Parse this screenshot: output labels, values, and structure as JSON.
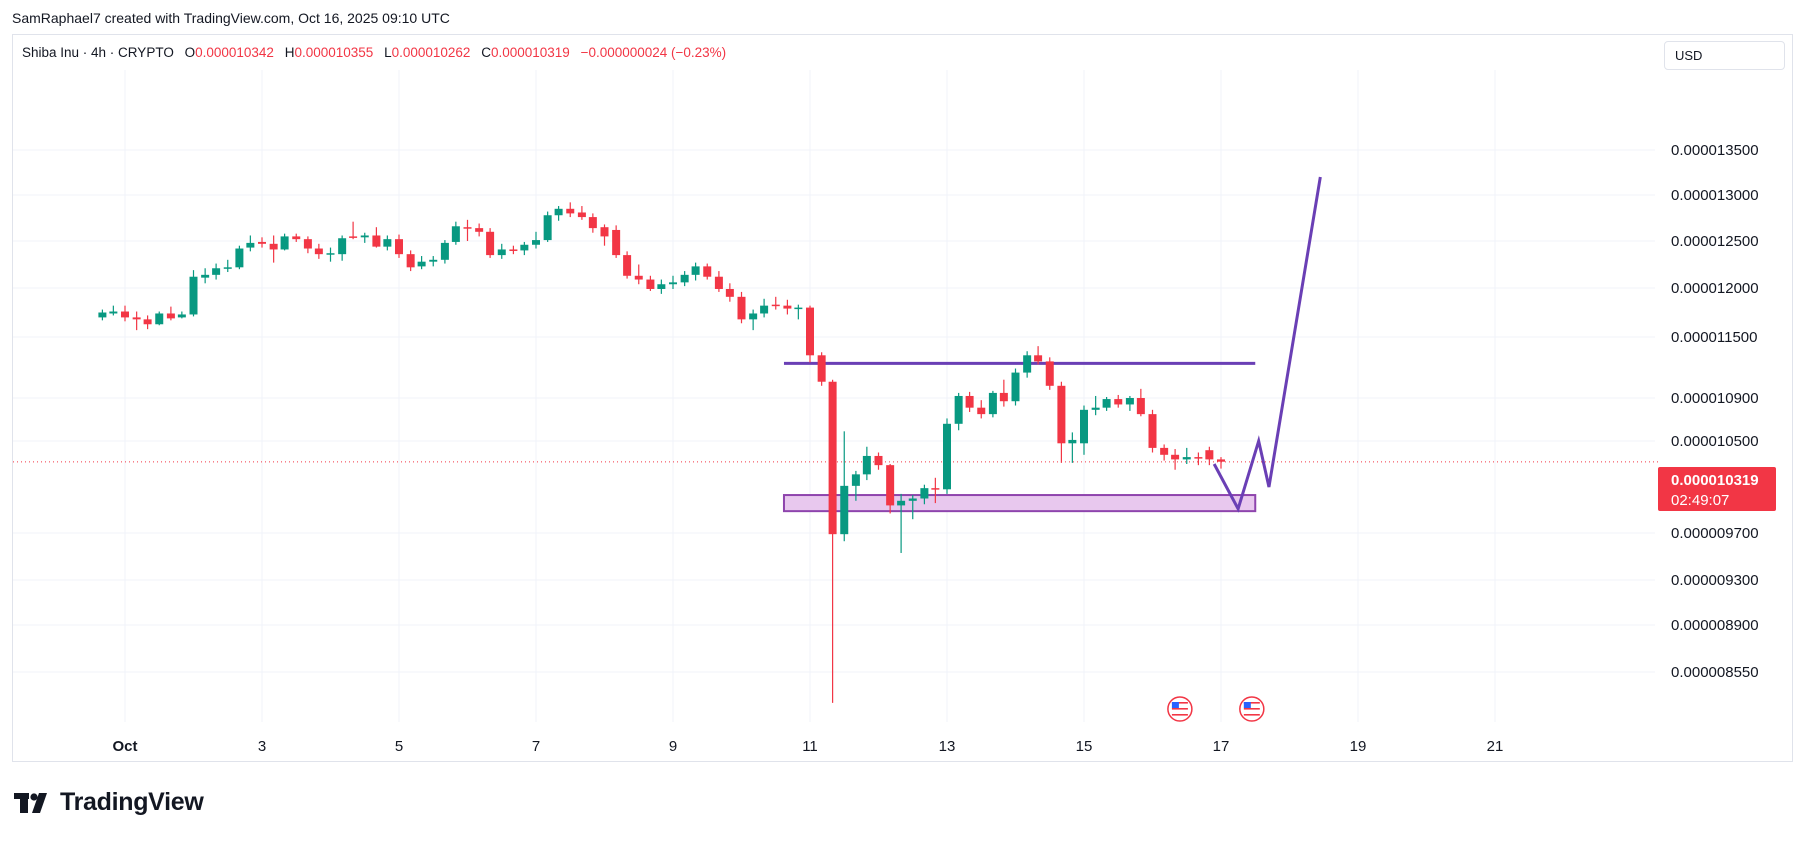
{
  "header": {
    "caption": "SamRaphael7 created with TradingView.com, Oct 16, 2025 09:10 UTC"
  },
  "legend": {
    "symbol": "Shiba Inu · 4h · CRYPTO",
    "open_label": "O",
    "open": "0.000010342",
    "high_label": "H",
    "high": "0.000010355",
    "low_label": "L",
    "low": "0.000010262",
    "close_label": "C",
    "close": "0.000010319",
    "change": "−0.000000024 (−0.23%)"
  },
  "currency": "USD",
  "price_badge": {
    "price": "0.000010319",
    "countdown": "02:49:07"
  },
  "brand": {
    "name": "TradingView"
  },
  "colors": {
    "up": "#089981",
    "down": "#f23645",
    "drawing": "#6a3fb5",
    "zone_fill": "#e8c8ee",
    "zone_border": "#8e44ad"
  },
  "chart_data": {
    "type": "candlestick",
    "symbol": "Shiba Inu",
    "interval": "4h",
    "x_axis": {
      "ticks": [
        {
          "label": "Oct",
          "day": 1
        },
        {
          "label": "3",
          "day": 3
        },
        {
          "label": "5",
          "day": 5
        },
        {
          "label": "7",
          "day": 7
        },
        {
          "label": "9",
          "day": 9
        },
        {
          "label": "11",
          "day": 11
        },
        {
          "label": "13",
          "day": 13
        },
        {
          "label": "15",
          "day": 15
        },
        {
          "label": "17",
          "day": 17
        },
        {
          "label": "19",
          "day": 19
        },
        {
          "label": "21",
          "day": 21
        }
      ]
    },
    "y_axis": {
      "ticks": [
        "0.000013500",
        "0.000013000",
        "0.000012500",
        "0.000012000",
        "0.000011500",
        "0.000010900",
        "0.000010500",
        "0.000009700",
        "0.000009300",
        "0.000008900",
        "0.000008550"
      ]
    },
    "grid": true,
    "current_price": 1.0319e-05,
    "candles": [
      {
        "day": 0.67,
        "o": 1.17e-05,
        "h": 1.178e-05,
        "l": 1.167e-05,
        "c": 1.175e-05
      },
      {
        "day": 0.83,
        "o": 1.174e-05,
        "h": 1.182e-05,
        "l": 1.172e-05,
        "c": 1.176e-05
      },
      {
        "day": 1.0,
        "o": 1.176e-05,
        "h": 1.182e-05,
        "l": 1.166e-05,
        "c": 1.17e-05
      },
      {
        "day": 1.17,
        "o": 1.17e-05,
        "h": 1.176e-05,
        "l": 1.157e-05,
        "c": 1.168e-05
      },
      {
        "day": 1.33,
        "o": 1.168e-05,
        "h": 1.172e-05,
        "l": 1.158e-05,
        "c": 1.163e-05
      },
      {
        "day": 1.5,
        "o": 1.163e-05,
        "h": 1.176e-05,
        "l": 1.162e-05,
        "c": 1.174e-05
      },
      {
        "day": 1.67,
        "o": 1.174e-05,
        "h": 1.181e-05,
        "l": 1.167e-05,
        "c": 1.169e-05
      },
      {
        "day": 1.83,
        "o": 1.17e-05,
        "h": 1.176e-05,
        "l": 1.169e-05,
        "c": 1.173e-05
      },
      {
        "day": 2.0,
        "o": 1.173e-05,
        "h": 1.219e-05,
        "l": 1.171e-05,
        "c": 1.212e-05
      },
      {
        "day": 2.17,
        "o": 1.211e-05,
        "h": 1.221e-05,
        "l": 1.205e-05,
        "c": 1.214e-05
      },
      {
        "day": 2.33,
        "o": 1.214e-05,
        "h": 1.226e-05,
        "l": 1.209e-05,
        "c": 1.221e-05
      },
      {
        "day": 2.5,
        "o": 1.221e-05,
        "h": 1.23e-05,
        "l": 1.217e-05,
        "c": 1.222e-05
      },
      {
        "day": 2.67,
        "o": 1.222e-05,
        "h": 1.245e-05,
        "l": 1.22e-05,
        "c": 1.242e-05
      },
      {
        "day": 2.83,
        "o": 1.243e-05,
        "h": 1.256e-05,
        "l": 1.239e-05,
        "c": 1.248e-05
      },
      {
        "day": 3.0,
        "o": 1.249e-05,
        "h": 1.254e-05,
        "l": 1.243e-05,
        "c": 1.247e-05
      },
      {
        "day": 3.17,
        "o": 1.247e-05,
        "h": 1.256e-05,
        "l": 1.227e-05,
        "c": 1.241e-05
      },
      {
        "day": 3.33,
        "o": 1.241e-05,
        "h": 1.258e-05,
        "l": 1.24e-05,
        "c": 1.255e-05
      },
      {
        "day": 3.5,
        "o": 1.255e-05,
        "h": 1.258e-05,
        "l": 1.249e-05,
        "c": 1.252e-05
      },
      {
        "day": 3.67,
        "o": 1.252e-05,
        "h": 1.255e-05,
        "l": 1.237e-05,
        "c": 1.242e-05
      },
      {
        "day": 3.83,
        "o": 1.242e-05,
        "h": 1.247e-05,
        "l": 1.231e-05,
        "c": 1.236e-05
      },
      {
        "day": 4.0,
        "o": 1.237e-05,
        "h": 1.243e-05,
        "l": 1.228e-05,
        "c": 1.237e-05
      },
      {
        "day": 4.17,
        "o": 1.236e-05,
        "h": 1.256e-05,
        "l": 1.229e-05,
        "c": 1.253e-05
      },
      {
        "day": 4.33,
        "o": 1.255e-05,
        "h": 1.271e-05,
        "l": 1.252e-05,
        "c": 1.254e-05
      },
      {
        "day": 4.5,
        "o": 1.254e-05,
        "h": 1.259e-05,
        "l": 1.248e-05,
        "c": 1.256e-05
      },
      {
        "day": 4.67,
        "o": 1.256e-05,
        "h": 1.265e-05,
        "l": 1.243e-05,
        "c": 1.244e-05
      },
      {
        "day": 4.83,
        "o": 1.244e-05,
        "h": 1.256e-05,
        "l": 1.24e-05,
        "c": 1.252e-05
      },
      {
        "day": 5.0,
        "o": 1.252e-05,
        "h": 1.257e-05,
        "l": 1.232e-05,
        "c": 1.236e-05
      },
      {
        "day": 5.17,
        "o": 1.236e-05,
        "h": 1.24e-05,
        "l": 1.218e-05,
        "c": 1.222e-05
      },
      {
        "day": 5.33,
        "o": 1.223e-05,
        "h": 1.234e-05,
        "l": 1.22e-05,
        "c": 1.228e-05
      },
      {
        "day": 5.5,
        "o": 1.228e-05,
        "h": 1.234e-05,
        "l": 1.223e-05,
        "c": 1.23e-05
      },
      {
        "day": 5.67,
        "o": 1.23e-05,
        "h": 1.251e-05,
        "l": 1.226e-05,
        "c": 1.248e-05
      },
      {
        "day": 5.83,
        "o": 1.249e-05,
        "h": 1.271e-05,
        "l": 1.246e-05,
        "c": 1.266e-05
      },
      {
        "day": 6.0,
        "o": 1.265e-05,
        "h": 1.273e-05,
        "l": 1.25e-05,
        "c": 1.264e-05
      },
      {
        "day": 6.17,
        "o": 1.264e-05,
        "h": 1.269e-05,
        "l": 1.255e-05,
        "c": 1.26e-05
      },
      {
        "day": 6.33,
        "o": 1.26e-05,
        "h": 1.264e-05,
        "l": 1.232e-05,
        "c": 1.235e-05
      },
      {
        "day": 6.5,
        "o": 1.235e-05,
        "h": 1.247e-05,
        "l": 1.231e-05,
        "c": 1.241e-05
      },
      {
        "day": 6.67,
        "o": 1.241e-05,
        "h": 1.245e-05,
        "l": 1.236e-05,
        "c": 1.24e-05
      },
      {
        "day": 6.83,
        "o": 1.24e-05,
        "h": 1.249e-05,
        "l": 1.235e-05,
        "c": 1.246e-05
      },
      {
        "day": 7.0,
        "o": 1.246e-05,
        "h": 1.26e-05,
        "l": 1.242e-05,
        "c": 1.251e-05
      },
      {
        "day": 7.17,
        "o": 1.251e-05,
        "h": 1.282e-05,
        "l": 1.249e-05,
        "c": 1.278e-05
      },
      {
        "day": 7.33,
        "o": 1.278e-05,
        "h": 1.288e-05,
        "l": 1.272e-05,
        "c": 1.285e-05
      },
      {
        "day": 7.5,
        "o": 1.285e-05,
        "h": 1.292e-05,
        "l": 1.276e-05,
        "c": 1.28e-05
      },
      {
        "day": 7.67,
        "o": 1.281e-05,
        "h": 1.288e-05,
        "l": 1.273e-05,
        "c": 1.276e-05
      },
      {
        "day": 7.83,
        "o": 1.276e-05,
        "h": 1.28e-05,
        "l": 1.259e-05,
        "c": 1.264e-05
      },
      {
        "day": 8.0,
        "o": 1.265e-05,
        "h": 1.268e-05,
        "l": 1.245e-05,
        "c": 1.255e-05
      },
      {
        "day": 8.17,
        "o": 1.262e-05,
        "h": 1.267e-05,
        "l": 1.232e-05,
        "c": 1.235e-05
      },
      {
        "day": 8.33,
        "o": 1.235e-05,
        "h": 1.239e-05,
        "l": 1.21e-05,
        "c": 1.213e-05
      },
      {
        "day": 8.5,
        "o": 1.213e-05,
        "h": 1.225e-05,
        "l": 1.204e-05,
        "c": 1.209e-05
      },
      {
        "day": 8.67,
        "o": 1.209e-05,
        "h": 1.213e-05,
        "l": 1.197e-05,
        "c": 1.199e-05
      },
      {
        "day": 8.83,
        "o": 1.199e-05,
        "h": 1.209e-05,
        "l": 1.194e-05,
        "c": 1.204e-05
      },
      {
        "day": 9.0,
        "o": 1.204e-05,
        "h": 1.213e-05,
        "l": 1.199e-05,
        "c": 1.206e-05
      },
      {
        "day": 9.17,
        "o": 1.206e-05,
        "h": 1.218e-05,
        "l": 1.202e-05,
        "c": 1.214e-05
      },
      {
        "day": 9.33,
        "o": 1.214e-05,
        "h": 1.227e-05,
        "l": 1.208e-05,
        "c": 1.223e-05
      },
      {
        "day": 9.5,
        "o": 1.223e-05,
        "h": 1.226e-05,
        "l": 1.209e-05,
        "c": 1.212e-05
      },
      {
        "day": 9.67,
        "o": 1.212e-05,
        "h": 1.218e-05,
        "l": 1.196e-05,
        "c": 1.199e-05
      },
      {
        "day": 9.83,
        "o": 1.199e-05,
        "h": 1.205e-05,
        "l": 1.186e-05,
        "c": 1.191e-05
      },
      {
        "day": 10.0,
        "o": 1.191e-05,
        "h": 1.196e-05,
        "l": 1.164e-05,
        "c": 1.168e-05
      },
      {
        "day": 10.17,
        "o": 1.168e-05,
        "h": 1.178e-05,
        "l": 1.157e-05,
        "c": 1.174e-05
      },
      {
        "day": 10.33,
        "o": 1.174e-05,
        "h": 1.189e-05,
        "l": 1.17e-05,
        "c": 1.182e-05
      },
      {
        "day": 10.5,
        "o": 1.183e-05,
        "h": 1.191e-05,
        "l": 1.178e-05,
        "c": 1.182e-05
      },
      {
        "day": 10.67,
        "o": 1.182e-05,
        "h": 1.188e-05,
        "l": 1.173e-05,
        "c": 1.179e-05
      },
      {
        "day": 10.83,
        "o": 1.179e-05,
        "h": 1.183e-05,
        "l": 1.168e-05,
        "c": 1.18e-05
      },
      {
        "day": 11.0,
        "o": 1.18e-05,
        "h": 1.182e-05,
        "l": 1.125e-05,
        "c": 1.132e-05
      },
      {
        "day": 11.17,
        "o": 1.132e-05,
        "h": 1.135e-05,
        "l": 1.102e-05,
        "c": 1.106e-05
      },
      {
        "day": 11.33,
        "o": 1.106e-05,
        "h": 1.108e-05,
        "l": 8.32e-06,
        "c": 9.69e-06
      },
      {
        "day": 11.5,
        "o": 9.69e-06,
        "h": 1.059e-05,
        "l": 9.63e-06,
        "c": 1.011e-05
      },
      {
        "day": 11.67,
        "o": 1.011e-05,
        "h": 1.024e-05,
        "l": 9.98e-06,
        "c": 1.021e-05
      },
      {
        "day": 11.83,
        "o": 1.021e-05,
        "h": 1.045e-05,
        "l": 1.016e-05,
        "c": 1.037e-05
      },
      {
        "day": 12.0,
        "o": 1.037e-05,
        "h": 1.04e-05,
        "l": 1.025e-05,
        "c": 1.029e-05
      },
      {
        "day": 12.17,
        "o": 1.029e-05,
        "h": 1.03e-05,
        "l": 9.87e-06,
        "c": 9.94e-06
      },
      {
        "day": 12.33,
        "o": 9.94e-06,
        "h": 1.004e-05,
        "l": 9.53e-06,
        "c": 9.98e-06
      },
      {
        "day": 12.5,
        "o": 9.98e-06,
        "h": 1.003e-05,
        "l": 9.82e-06,
        "c": 1e-05
      },
      {
        "day": 12.67,
        "o": 1e-05,
        "h": 1.012e-05,
        "l": 9.95e-06,
        "c": 1.009e-05
      },
      {
        "day": 12.83,
        "o": 1.009e-05,
        "h": 1.018e-05,
        "l": 9.96e-06,
        "c": 1.008e-05
      },
      {
        "day": 13.0,
        "o": 1.008e-05,
        "h": 1.071e-05,
        "l": 1.004e-05,
        "c": 1.066e-05
      },
      {
        "day": 13.17,
        "o": 1.066e-05,
        "h": 1.095e-05,
        "l": 1.06e-05,
        "c": 1.092e-05
      },
      {
        "day": 13.33,
        "o": 1.092e-05,
        "h": 1.096e-05,
        "l": 1.077e-05,
        "c": 1.081e-05
      },
      {
        "day": 13.5,
        "o": 1.081e-05,
        "h": 1.088e-05,
        "l": 1.071e-05,
        "c": 1.075e-05
      },
      {
        "day": 13.67,
        "o": 1.075e-05,
        "h": 1.097e-05,
        "l": 1.072e-05,
        "c": 1.095e-05
      },
      {
        "day": 13.83,
        "o": 1.095e-05,
        "h": 1.108e-05,
        "l": 1.082e-05,
        "c": 1.087e-05
      },
      {
        "day": 14.0,
        "o": 1.087e-05,
        "h": 1.119e-05,
        "l": 1.083e-05,
        "c": 1.115e-05
      },
      {
        "day": 14.17,
        "o": 1.115e-05,
        "h": 1.136e-05,
        "l": 1.11e-05,
        "c": 1.132e-05
      },
      {
        "day": 14.33,
        "o": 1.132e-05,
        "h": 1.141e-05,
        "l": 1.123e-05,
        "c": 1.126e-05
      },
      {
        "day": 14.5,
        "o": 1.126e-05,
        "h": 1.13e-05,
        "l": 1.098e-05,
        "c": 1.102e-05
      },
      {
        "day": 14.67,
        "o": 1.102e-05,
        "h": 1.106e-05,
        "l": 1.031e-05,
        "c": 1.048e-05
      },
      {
        "day": 14.83,
        "o": 1.048e-05,
        "h": 1.058e-05,
        "l": 1.031e-05,
        "c": 1.051e-05
      },
      {
        "day": 15.0,
        "o": 1.048e-05,
        "h": 1.083e-05,
        "l": 1.038e-05,
        "c": 1.079e-05
      },
      {
        "day": 15.17,
        "o": 1.079e-05,
        "h": 1.092e-05,
        "l": 1.074e-05,
        "c": 1.081e-05
      },
      {
        "day": 15.33,
        "o": 1.081e-05,
        "h": 1.091e-05,
        "l": 1.078e-05,
        "c": 1.089e-05
      },
      {
        "day": 15.5,
        "o": 1.089e-05,
        "h": 1.093e-05,
        "l": 1.081e-05,
        "c": 1.084e-05
      },
      {
        "day": 15.67,
        "o": 1.084e-05,
        "h": 1.092e-05,
        "l": 1.078e-05,
        "c": 1.09e-05
      },
      {
        "day": 15.83,
        "o": 1.09e-05,
        "h": 1.099e-05,
        "l": 1.073e-05,
        "c": 1.075e-05
      },
      {
        "day": 16.0,
        "o": 1.075e-05,
        "h": 1.079e-05,
        "l": 1.04e-05,
        "c": 1.044e-05
      },
      {
        "day": 16.17,
        "o": 1.044e-05,
        "h": 1.047e-05,
        "l": 1.033e-05,
        "c": 1.038e-05
      },
      {
        "day": 16.33,
        "o": 1.038e-05,
        "h": 1.043e-05,
        "l": 1.025e-05,
        "c": 1.034e-05
      },
      {
        "day": 16.5,
        "o": 1.034e-05,
        "h": 1.044e-05,
        "l": 1.03e-05,
        "c": 1.036e-05
      },
      {
        "day": 16.67,
        "o": 1.036e-05,
        "h": 1.04e-05,
        "l": 1.029e-05,
        "c": 1.035e-05
      },
      {
        "day": 16.83,
        "o": 1.042e-05,
        "h": 1.045e-05,
        "l": 1.029e-05,
        "c": 1.034e-05
      },
      {
        "day": 17.0,
        "o": 1.034e-05,
        "h": 1.036e-05,
        "l": 1.026e-05,
        "c": 1.032e-05
      }
    ],
    "annotations": {
      "resistance": {
        "price": 1.124e-05,
        "from_day": 10.62,
        "to_day": 17.5
      },
      "support_zone": {
        "top": 1.003e-05,
        "bottom": 9.89e-06,
        "from_day": 10.62,
        "to_day": 17.5
      },
      "projection": [
        {
          "day": 16.9,
          "price": 1.03e-05
        },
        {
          "day": 17.25,
          "price": 9.91e-06
        },
        {
          "day": 17.55,
          "price": 1.05e-05
        },
        {
          "day": 17.7,
          "price": 1.01e-05
        },
        {
          "day": 18.45,
          "price": 1.32e-05
        }
      ]
    },
    "event_markers": [
      {
        "day": 16.4,
        "icon": "us-flag-icon"
      },
      {
        "day": 17.45,
        "icon": "us-flag-icon"
      }
    ]
  }
}
